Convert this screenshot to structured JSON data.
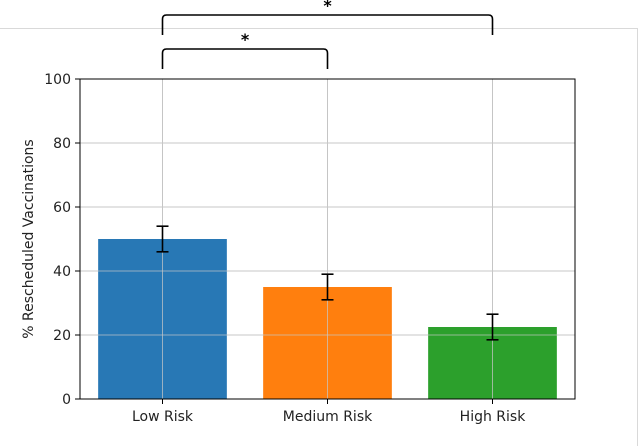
{
  "chart_data": {
    "type": "bar",
    "title": "",
    "xlabel": "",
    "ylabel": "% Rescheduled Vaccinations",
    "categories": [
      "Low Risk",
      "Medium Risk",
      "High Risk"
    ],
    "values": [
      50,
      35,
      22.5
    ],
    "errors": [
      4,
      4,
      4
    ],
    "colors": [
      "#2878b5",
      "#ff7f0e",
      "#2ca02c"
    ],
    "ylim": [
      0,
      100
    ],
    "yticks": [
      "0",
      "20",
      "40",
      "60",
      "80",
      "100"
    ],
    "grid": true,
    "significance": [
      {
        "from": "Low Risk",
        "to": "Medium Risk",
        "label": "*"
      },
      {
        "from": "Low Risk",
        "to": "High Risk",
        "label": "*"
      }
    ]
  }
}
